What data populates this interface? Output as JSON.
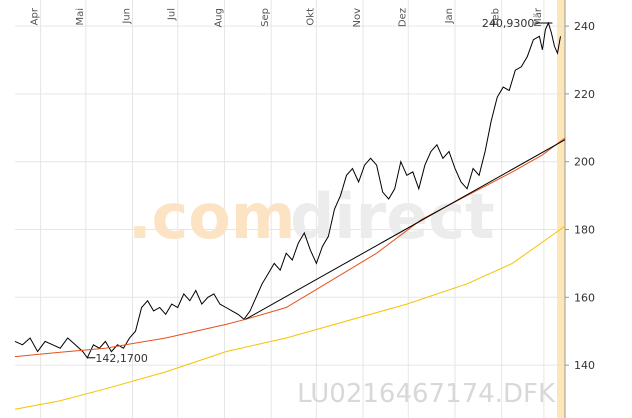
{
  "chart_data": {
    "type": "line",
    "brand": [
      ".com",
      "direct"
    ],
    "symbol": "LU0216467174.DFK",
    "xlim": [
      0,
      365
    ],
    "xticks": [
      {
        "value": 17,
        "label": "Apr"
      },
      {
        "value": 47,
        "label": "Mai"
      },
      {
        "value": 78,
        "label": "Jun"
      },
      {
        "value": 108,
        "label": "Jul"
      },
      {
        "value": 139,
        "label": "Aug"
      },
      {
        "value": 170,
        "label": "Sep"
      },
      {
        "value": 200,
        "label": "Okt"
      },
      {
        "value": 231,
        "label": "Nov"
      },
      {
        "value": 261,
        "label": "Dez"
      },
      {
        "value": 292,
        "label": "Jan"
      },
      {
        "value": 323,
        "label": "Feb"
      },
      {
        "value": 351,
        "label": "Mär"
      }
    ],
    "ylim": [
      124.4,
      247.7
    ],
    "yticks": [
      140,
      160,
      180,
      200,
      220,
      240
    ],
    "grid": true,
    "series": [
      {
        "color": "#000000",
        "x": [
          0,
          5,
          10,
          15,
          20,
          25,
          30,
          35,
          40,
          45,
          48,
          52,
          56,
          60,
          64,
          68,
          72,
          76,
          80,
          84,
          88,
          92,
          96,
          100,
          104,
          108,
          112,
          116,
          120,
          124,
          128,
          132,
          136,
          140,
          144,
          148,
          152,
          156,
          160,
          164,
          168,
          172,
          176,
          180,
          184,
          188,
          192,
          196,
          200,
          204,
          208,
          212,
          216,
          220,
          224,
          228,
          232,
          236,
          240,
          244,
          248,
          252,
          256,
          260,
          264,
          268,
          272,
          276,
          280,
          284,
          288,
          292,
          296,
          300,
          304,
          308,
          312,
          316,
          320,
          324,
          328,
          332,
          336,
          340,
          344,
          348,
          350,
          352,
          354,
          356,
          358,
          360,
          362
        ],
        "values": [
          147,
          146,
          148,
          144,
          147,
          146,
          145,
          148,
          146,
          144,
          142.17,
          146,
          145,
          147,
          144,
          146,
          145,
          148,
          150,
          157,
          159,
          156,
          157,
          155,
          158,
          157,
          161,
          159,
          162,
          158,
          160,
          161,
          158,
          157,
          156,
          155,
          153.5,
          156,
          160,
          164,
          167,
          170,
          168,
          173,
          171,
          176,
          179,
          174,
          170,
          175,
          178,
          186,
          190,
          196,
          198,
          194,
          199,
          201,
          199,
          191,
          189,
          192,
          200,
          196,
          197,
          192,
          199,
          203,
          205,
          201,
          203,
          198,
          194,
          192,
          198,
          196,
          203,
          212,
          219,
          222,
          221,
          227,
          228,
          231,
          236,
          237,
          233,
          239,
          240.93,
          238,
          234,
          232,
          237
        ]
      },
      {
        "color": "#e8501a",
        "x": [
          0,
          30,
          60,
          100,
          140,
          153,
          180,
          210,
          240,
          270,
          300,
          330,
          350,
          365
        ],
        "values": [
          142.5,
          143.8,
          145,
          148,
          152,
          153.5,
          157,
          165,
          173,
          183,
          190,
          197,
          202,
          207
        ]
      },
      {
        "color": "#f5c400",
        "x": [
          0,
          30,
          60,
          100,
          140,
          180,
          220,
          260,
          300,
          330,
          365
        ],
        "values": [
          127,
          129.5,
          133,
          138,
          144,
          148,
          153,
          158,
          164,
          170,
          181
        ]
      },
      {
        "color": "#000000",
        "x": [
          153,
          365
        ],
        "values": [
          153.5,
          206.5
        ]
      }
    ],
    "annotations": [
      {
        "text": "240,9300",
        "x": 354,
        "y": 240.93
      },
      {
        "text": "142,1700",
        "x": 48,
        "y": 142.17
      }
    ]
  }
}
